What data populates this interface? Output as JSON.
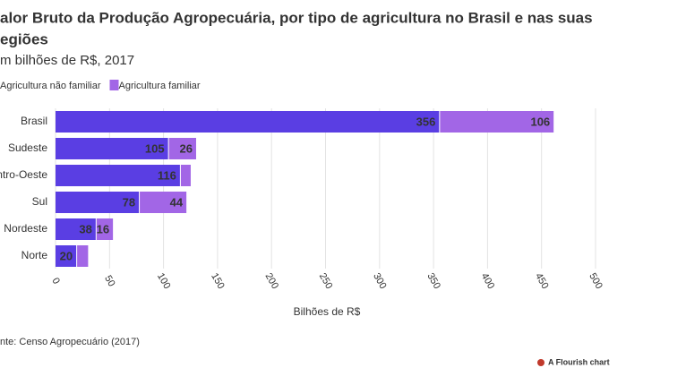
{
  "chart_data": {
    "type": "stacked_bar_horizontal",
    "title_lines": [
      "alor Bruto da Produção Agropecuária, por tipo de agricultura no Brasil e nas suas",
      "egiões"
    ],
    "subtitle": "m bilhões de R$, 2017",
    "categories": [
      "Brasil",
      "Sudeste",
      "ntro-Oeste",
      "Sul",
      "Nordeste",
      "Norte"
    ],
    "series": [
      {
        "name": "Agricultura não familiar",
        "color": "#5a3ee3",
        "values": [
          356,
          105,
          116,
          78,
          38,
          20
        ],
        "value_labels": [
          "356",
          "105",
          "116",
          "78",
          "38",
          "20"
        ]
      },
      {
        "name": "Agricultura familiar",
        "color": "#a266e6",
        "values": [
          106,
          26,
          10,
          44,
          16,
          11
        ],
        "value_labels": [
          "106",
          "26",
          null,
          "44",
          "16",
          null
        ]
      }
    ],
    "xlim": [
      0,
      500
    ],
    "xticks": [
      0,
      50,
      100,
      150,
      200,
      250,
      300,
      350,
      400,
      450,
      500
    ],
    "x_label": "Bilhões de R$",
    "grid": true,
    "source": "nte: Censo Agropecuário (2017)",
    "credit": "A Flourish chart"
  }
}
